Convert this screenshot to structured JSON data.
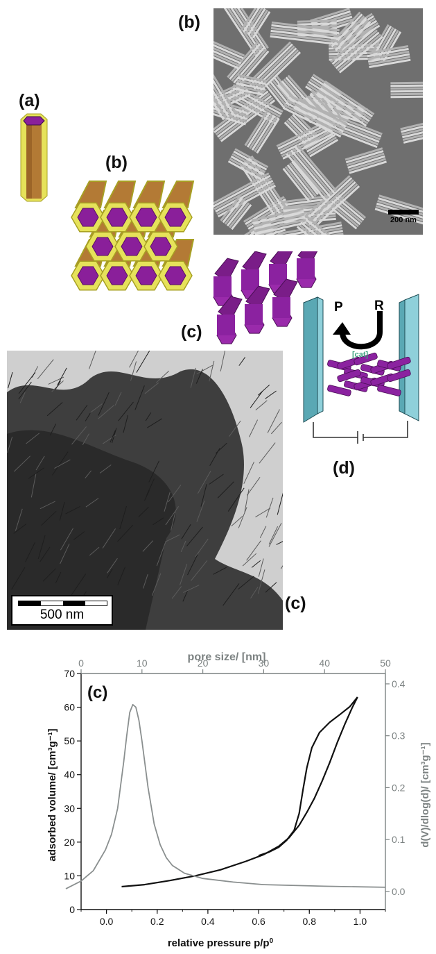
{
  "figure": {
    "labels": {
      "a": "(a)",
      "b_sem": "(b)",
      "b_bundle": "(b)",
      "c_rods": "(c)",
      "c_tem": "(c)",
      "d": "(d)"
    },
    "sem": {
      "scalebar": "200 nm"
    },
    "tem": {
      "scalebar": "500 nm"
    },
    "device": {
      "P": "P",
      "R": "R",
      "cat": "[cat]"
    }
  },
  "chart_data": {
    "type": "line",
    "panel_label": "(c)",
    "xlabel_html": "relative pressure p/p",
    "xlabel_sup": "0",
    "xlim": [
      -0.1,
      1.1
    ],
    "xticks": [
      0.0,
      0.2,
      0.4,
      0.6,
      0.8,
      1.0
    ],
    "xtick_labels": [
      "0.0",
      "0.2",
      "0.4",
      "0.6",
      "0.8",
      "1.0"
    ],
    "top_xlabel": "pore size/ [nm]",
    "top_xlim": [
      0,
      50
    ],
    "top_xticks": [
      0,
      10,
      20,
      30,
      40,
      50
    ],
    "top_xtick_labels": [
      "0",
      "10",
      "20",
      "30",
      "40",
      "50"
    ],
    "ylabel": "adsorbed volume/ [cm³g⁻¹]",
    "ylim": [
      0,
      70
    ],
    "yticks": [
      0,
      10,
      20,
      30,
      40,
      50,
      60,
      70
    ],
    "ytick_labels": [
      "0",
      "10",
      "20",
      "30",
      "40",
      "50",
      "60",
      "70"
    ],
    "y2label": "d(V)/dlog(d)/ [cm³g⁻¹]",
    "y2lim": [
      -0.035,
      0.42
    ],
    "y2ticks": [
      0.0,
      0.1,
      0.2,
      0.3,
      0.4
    ],
    "y2tick_labels": [
      "0.0",
      "0.1",
      "0.2",
      "0.3",
      "0.4"
    ],
    "grid": false,
    "series": [
      {
        "axis": "left-bottom",
        "color": "#111111",
        "x": [
          0.06,
          0.15,
          0.25,
          0.35,
          0.45,
          0.55,
          0.62,
          0.68,
          0.72,
          0.76,
          0.79,
          0.82,
          0.85,
          0.88,
          0.91,
          0.94,
          0.97,
          0.99
        ],
        "y": [
          6.8,
          7.4,
          8.6,
          10.0,
          11.8,
          14.3,
          16.3,
          18.8,
          21.3,
          25.0,
          28.8,
          33.0,
          38.0,
          43.5,
          49.5,
          55.0,
          60.0,
          63.0
        ]
      },
      {
        "axis": "left-bottom",
        "color": "#111111",
        "x": [
          0.99,
          0.96,
          0.92,
          0.88,
          0.84,
          0.81,
          0.79,
          0.775,
          0.76,
          0.74,
          0.71,
          0.68,
          0.64,
          0.6
        ],
        "y": [
          63.0,
          60.2,
          57.8,
          55.5,
          52.5,
          48.0,
          42.0,
          35.5,
          28.5,
          23.5,
          20.5,
          18.5,
          17.0,
          16.0
        ]
      },
      {
        "axis": "right-top",
        "color": "#8a8f8f",
        "x": [
          -2.5,
          0,
          2,
          4,
          5,
          6,
          7,
          7.5,
          8,
          8.5,
          9,
          9.5,
          10,
          11,
          12,
          13,
          14,
          15,
          17,
          20,
          25,
          30,
          40,
          50
        ],
        "y": [
          0.005,
          0.02,
          0.04,
          0.08,
          0.11,
          0.16,
          0.25,
          0.3,
          0.345,
          0.36,
          0.355,
          0.33,
          0.29,
          0.2,
          0.13,
          0.09,
          0.065,
          0.05,
          0.035,
          0.025,
          0.018,
          0.013,
          0.01,
          0.008
        ]
      }
    ]
  }
}
